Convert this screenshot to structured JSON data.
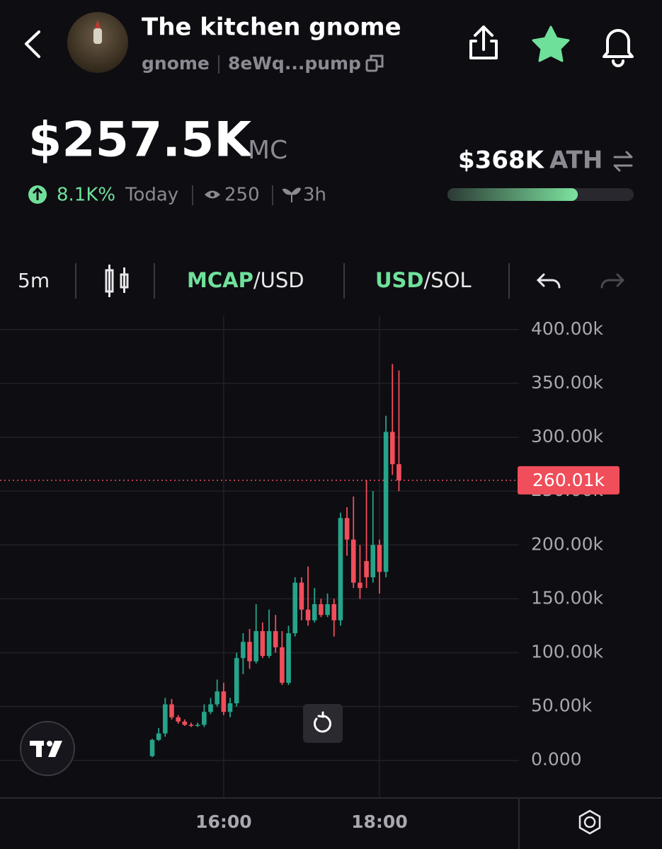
{
  "header": {
    "title": "The kitchen gnome",
    "ticker": "gnome",
    "address": "8eWq...pump"
  },
  "stats": {
    "market_cap": "$257.5K",
    "market_cap_unit": "MC",
    "change": "8.1K%",
    "period": "Today",
    "views": "250",
    "age": "3h",
    "ath": "$368K",
    "ath_label": "ATH",
    "ath_progress": 0.7
  },
  "toolbar": {
    "interval": "5m",
    "mode_main": "MCAP",
    "mode_rest": "/USD",
    "quote_main": "USD",
    "quote_rest": "/SOL"
  },
  "chart_data": {
    "type": "candlestick",
    "categories": [
      null,
      null,
      null,
      null,
      null,
      null,
      null,
      null,
      null,
      null,
      null,
      "16:00",
      null,
      null,
      null,
      null,
      null,
      null,
      null,
      null,
      null,
      null,
      null,
      null,
      null,
      null,
      null,
      null,
      null,
      null,
      null,
      null,
      null,
      null,
      null,
      "18:00",
      null,
      null,
      null
    ],
    "open": [
      4,
      19,
      25,
      52,
      40,
      36,
      33,
      32,
      33,
      45,
      52,
      64,
      45,
      53,
      95,
      110,
      92,
      120,
      97,
      120,
      105,
      72,
      118,
      165,
      140,
      130,
      145,
      135,
      145,
      130,
      225,
      205,
      165,
      185,
      170,
      200,
      175,
      305,
      275
    ],
    "high": [
      20,
      30,
      58,
      57,
      42,
      38,
      35,
      35,
      52,
      58,
      75,
      72,
      58,
      100,
      118,
      122,
      145,
      128,
      140,
      135,
      120,
      125,
      170,
      170,
      180,
      160,
      150,
      155,
      150,
      230,
      235,
      245,
      200,
      260,
      250,
      205,
      320,
      368,
      362
    ],
    "low": [
      3,
      18,
      22,
      38,
      34,
      32,
      31,
      31,
      31,
      43,
      50,
      42,
      40,
      50,
      80,
      85,
      90,
      95,
      95,
      100,
      70,
      70,
      115,
      130,
      125,
      128,
      133,
      133,
      115,
      125,
      190,
      160,
      150,
      160,
      165,
      155,
      170,
      265,
      250
    ],
    "close": [
      19,
      25,
      52,
      40,
      36,
      33,
      32,
      33,
      45,
      52,
      64,
      45,
      53,
      95,
      110,
      92,
      120,
      97,
      120,
      105,
      72,
      118,
      165,
      140,
      130,
      145,
      135,
      145,
      130,
      225,
      205,
      165,
      160,
      170,
      200,
      175,
      305,
      275,
      260.01
    ],
    "up_color": "#26a48a",
    "down_color": "#f04e5a",
    "ylim": [
      -35,
      413
    ],
    "yticks": [
      {
        "value": 0,
        "label": "0.000"
      },
      {
        "value": 50,
        "label": "50.00k"
      },
      {
        "value": 100,
        "label": "100.00k"
      },
      {
        "value": 150,
        "label": "150.00k"
      },
      {
        "value": 200,
        "label": "200.00k"
      },
      {
        "value": 250,
        "label": "250.00k"
      },
      {
        "value": 300,
        "label": "300.00k"
      },
      {
        "value": 350,
        "label": "350.00k"
      },
      {
        "value": 400,
        "label": "400.00k"
      }
    ],
    "price_line": {
      "value": 260.01,
      "label": "260.01k"
    },
    "grid": true
  }
}
